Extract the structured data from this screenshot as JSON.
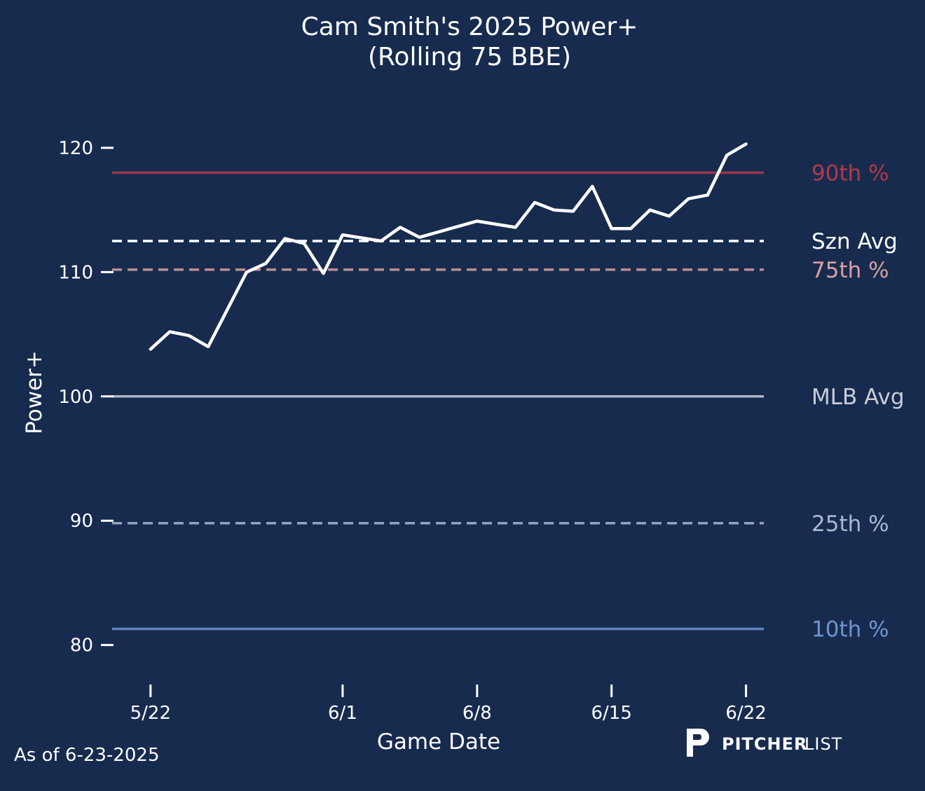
{
  "chart_data": {
    "type": "line",
    "title": "Cam Smith's 2025 Power+",
    "subtitle": "(Rolling 75 BBE)",
    "xlabel": "Game Date",
    "ylabel": "Power+",
    "x_ticks": [
      "5/22",
      "6/1",
      "6/8",
      "6/15",
      "6/22"
    ],
    "y_ticks": [
      80,
      90,
      100,
      110,
      120
    ],
    "ylim": [
      77.5,
      124
    ],
    "xlim": [
      "2025-05-20",
      "2025-06-23"
    ],
    "grid": false,
    "series": [
      {
        "x": [
          "2025-05-22",
          "2025-05-23",
          "2025-05-24",
          "2025-05-25",
          "2025-05-26",
          "2025-05-27",
          "2025-05-28",
          "2025-05-29",
          "2025-05-30",
          "2025-05-31",
          "2025-06-01",
          "2025-06-03",
          "2025-06-04",
          "2025-06-05",
          "2025-06-08",
          "2025-06-10",
          "2025-06-11",
          "2025-06-12",
          "2025-06-13",
          "2025-06-14",
          "2025-06-15",
          "2025-06-16",
          "2025-06-17",
          "2025-06-18",
          "2025-06-19",
          "2025-06-20",
          "2025-06-21",
          "2025-06-22"
        ],
        "values": [
          103.8,
          105.2,
          104.9,
          104.0,
          107.0,
          110.0,
          110.7,
          112.7,
          112.3,
          109.9,
          113.0,
          112.5,
          113.6,
          112.8,
          114.1,
          113.6,
          115.6,
          115.0,
          114.9,
          116.9,
          113.5,
          113.5,
          115.0,
          114.5,
          115.9,
          116.2,
          119.4,
          120.3
        ],
        "color": "#ffffff"
      }
    ],
    "reference_lines": [
      {
        "label": "90th %",
        "value": 118.0,
        "color": "#b23a48",
        "style": "solid"
      },
      {
        "label": "Szn Avg",
        "value": 112.5,
        "color": "#ffffff",
        "style": "dashed"
      },
      {
        "label": "75th %",
        "value": 110.2,
        "color": "#d8a0a2",
        "style": "dashed"
      },
      {
        "label": "MLB Avg",
        "value": 100.0,
        "color": "#c8ced8",
        "style": "solid"
      },
      {
        "label": "25th %",
        "value": 89.8,
        "color": "#aab8d0",
        "style": "dashed"
      },
      {
        "label": "10th %",
        "value": 81.3,
        "color": "#6f95cf",
        "style": "solid"
      }
    ]
  },
  "footer": {
    "as_of": "As of 6-23-2025",
    "brand_bold": "PITCHER",
    "brand_light": "LIST",
    "brand_icon": "pitcherlist-logo"
  }
}
